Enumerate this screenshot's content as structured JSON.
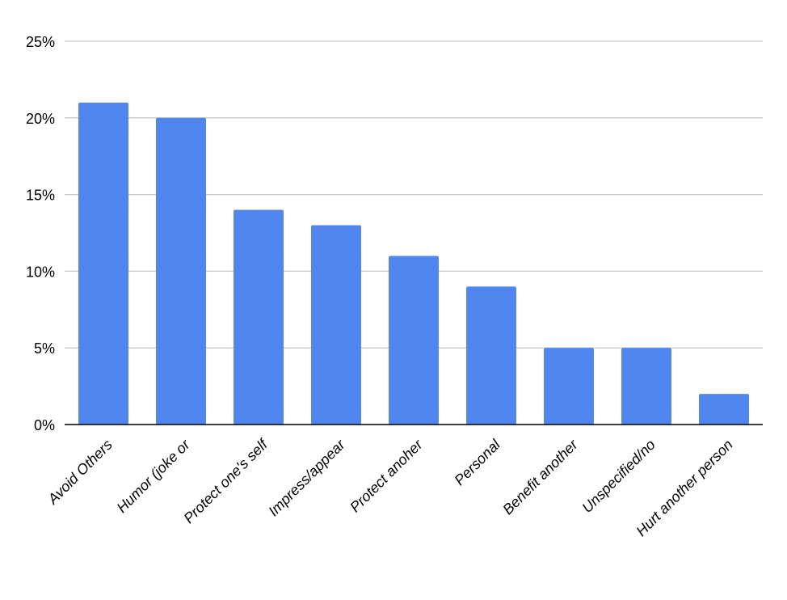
{
  "chart_data": {
    "type": "bar",
    "title": "",
    "xlabel": "",
    "ylabel": "",
    "categories": [
      "Avoid Others",
      "Humor (joke or",
      "Protect one's self",
      "Impress/appear",
      "Protect anoher",
      "Personal",
      "Benefit another",
      "Unspecified/no",
      "Hurt another person"
    ],
    "values": [
      21,
      20,
      14,
      13,
      11,
      9,
      5,
      5,
      2
    ],
    "ylim": [
      0,
      25
    ],
    "yticks": [
      0,
      5,
      10,
      15,
      20,
      25
    ],
    "ytick_labels": [
      "0%",
      "5%",
      "10%",
      "15%",
      "20%",
      "25%"
    ],
    "grid": true,
    "legend": "none",
    "bar_color": "#5085ED",
    "grid_color": "#C8C8C8",
    "axis_color": "#000000"
  }
}
